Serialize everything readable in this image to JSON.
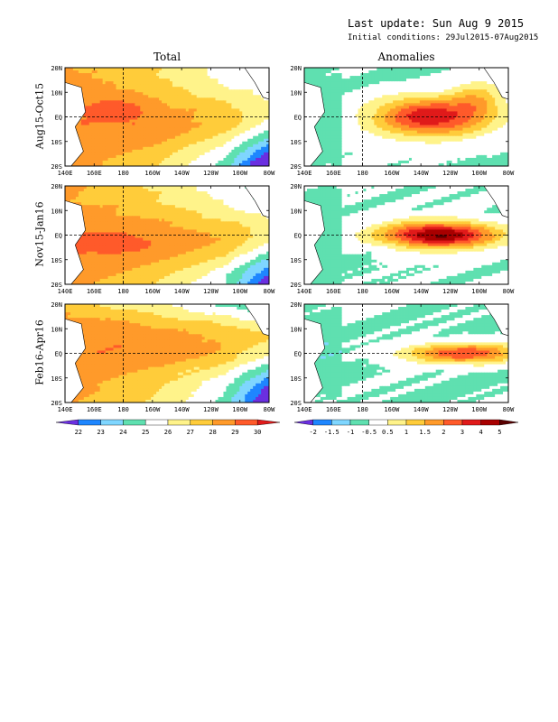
{
  "header": {
    "last_update": "Last update: Sun Aug 9 2015",
    "initial_conditions": "Initial conditions: 29Jul2015-07Aug2015"
  },
  "columns": [
    {
      "title": "Total"
    },
    {
      "title": "Anomalies"
    }
  ],
  "rows": [
    {
      "label": "Aug15-Oct15"
    },
    {
      "label": "Nov15-Jan16"
    },
    {
      "label": "Feb16-Apr16"
    }
  ],
  "axes": {
    "lon_labels": [
      "140E",
      "160E",
      "180",
      "160W",
      "140W",
      "120W",
      "100W",
      "80W"
    ],
    "lat_labels": [
      "20N",
      "10N",
      "EQ",
      "10S",
      "20S"
    ]
  },
  "colorbars": {
    "total": {
      "labels": [
        "22",
        "23",
        "24",
        "25",
        "26",
        "27",
        "28",
        "29",
        "30"
      ],
      "colors": [
        "#6a2fe0",
        "#1e86ff",
        "#7fd6ff",
        "#5fe0b0",
        "#ffffff",
        "#fff38a",
        "#ffcc3a",
        "#ff9a2a",
        "#ff5a2a",
        "#e01a1a"
      ]
    },
    "anomaly": {
      "labels": [
        "-2",
        "-1.5",
        "-1",
        "-0.5",
        "0.5",
        "1",
        "1.5",
        "2",
        "3",
        "4",
        "5"
      ],
      "colors": [
        "#6a2fe0",
        "#1e86ff",
        "#7fd6ff",
        "#5fe0b0",
        "#ffffff",
        "#fff38a",
        "#ffcc3a",
        "#ff9a2a",
        "#ff5a2a",
        "#e01a1a",
        "#a80000",
        "#5a0000"
      ]
    }
  },
  "chart_data": {
    "type": "heatmap",
    "title": "Last update: Sun Aug 9 2015",
    "subtitle": "Initial conditions: 29Jul2015-07Aug2015",
    "x_ticks": [
      "140E",
      "160E",
      "180",
      "160W",
      "140W",
      "120W",
      "100W",
      "80W"
    ],
    "y_ticks": [
      "20N",
      "10N",
      "EQ",
      "10S",
      "20S"
    ],
    "xlim": [
      "140E",
      "80W"
    ],
    "ylim": [
      "20S",
      "20N"
    ],
    "panels": [
      {
        "column": "Total",
        "row": "Aug15-Oct15",
        "scale_min": 22,
        "scale_max": 30
      },
      {
        "column": "Anomalies",
        "row": "Aug15-Oct15",
        "scale_min": -2,
        "scale_max": 5
      },
      {
        "column": "Total",
        "row": "Nov15-Jan16",
        "scale_min": 22,
        "scale_max": 30
      },
      {
        "column": "Anomalies",
        "row": "Nov15-Jan16",
        "scale_min": -2,
        "scale_max": 5
      },
      {
        "column": "Total",
        "row": "Feb16-Apr16",
        "scale_min": 22,
        "scale_max": 30
      },
      {
        "column": "Anomalies",
        "row": "Feb16-Apr16",
        "scale_min": -2,
        "scale_max": 5
      }
    ]
  }
}
